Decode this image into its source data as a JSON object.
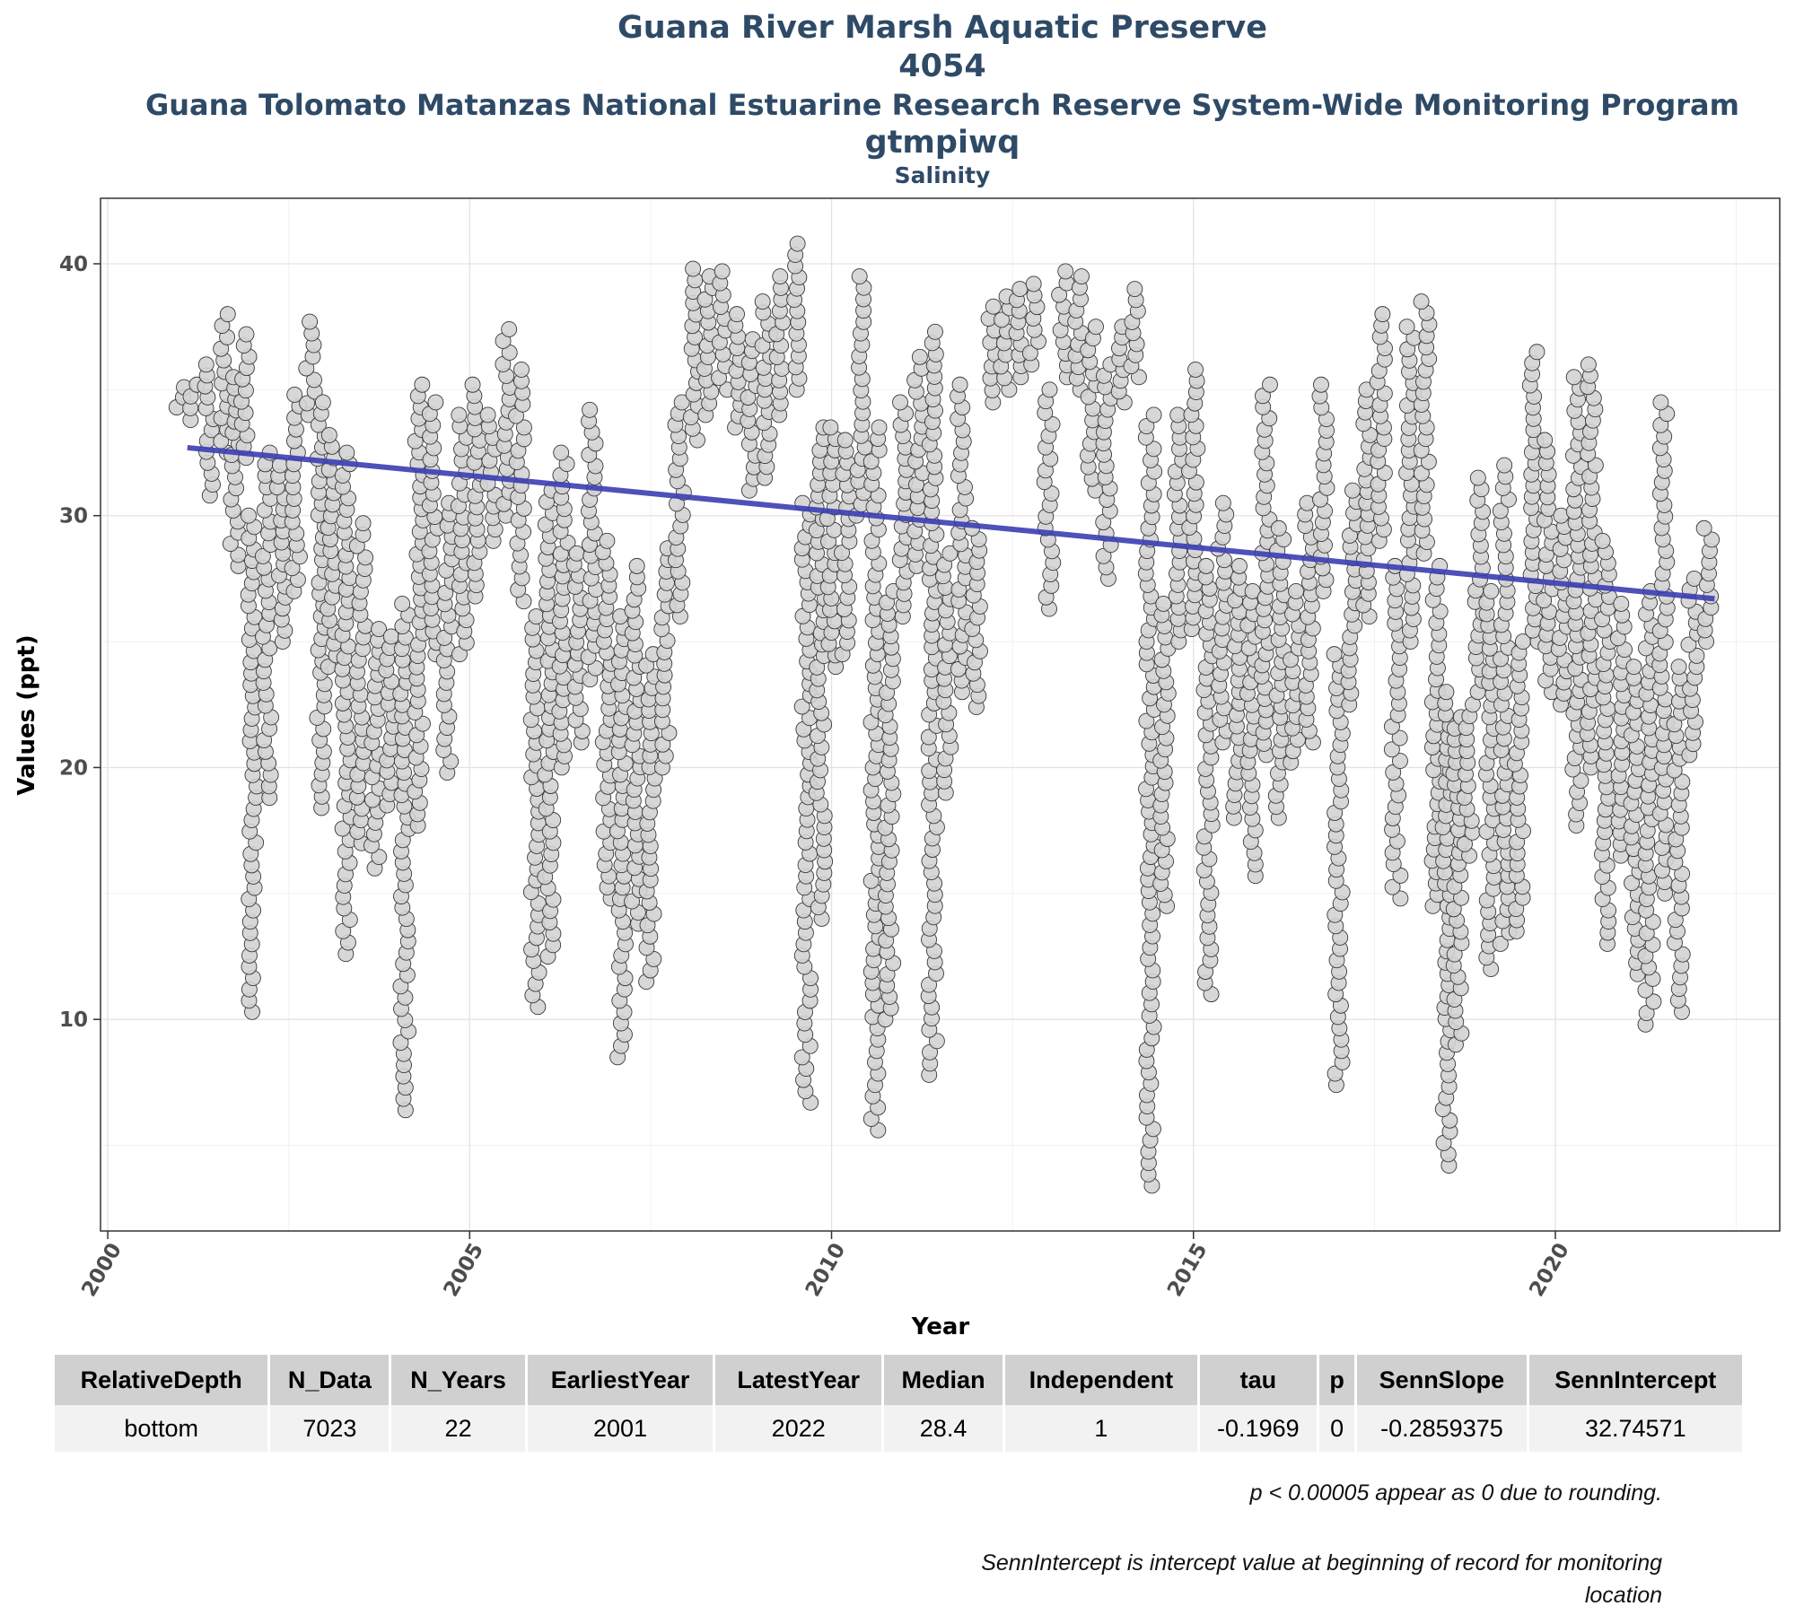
{
  "chart_data": {
    "type": "scatter",
    "title_lines": [
      "Guana River Marsh Aquatic Preserve",
      "4054",
      "Guana Tolomato Matanzas National Estuarine Research Reserve System-Wide Monitoring Program",
      "gtmpiwq"
    ],
    "subtitle": "Salinity",
    "xlabel": "Year",
    "ylabel": "Values (ppt)",
    "xlim": [
      1999.9,
      2023.1
    ],
    "ylim": [
      1.6,
      42.6
    ],
    "x_ticks": [
      2000,
      2005,
      2010,
      2015,
      2020
    ],
    "y_ticks": [
      10,
      20,
      30,
      40
    ],
    "grid": true,
    "trend_line": {
      "color": "#3a3eb0",
      "x": [
        2001.1,
        2022.2
      ],
      "y": [
        32.7,
        26.7
      ]
    },
    "point_series": [
      {
        "x": 2001.0,
        "ymin": 34.3,
        "ymax": 35.1
      },
      {
        "x": 2001.2,
        "ymin": 33.8,
        "ymax": 35.2
      },
      {
        "x": 2001.4,
        "ymin": 30.8,
        "ymax": 36.0
      },
      {
        "x": 2001.6,
        "ymin": 32.5,
        "ymax": 38.0
      },
      {
        "x": 2001.75,
        "ymin": 28.0,
        "ymax": 35.5
      },
      {
        "x": 2001.9,
        "ymin": 32.3,
        "ymax": 37.2
      },
      {
        "x": 2002.0,
        "ymin": 10.3,
        "ymax": 30.0
      },
      {
        "x": 2002.2,
        "ymin": 18.8,
        "ymax": 32.5
      },
      {
        "x": 2002.4,
        "ymin": 25.0,
        "ymax": 32.0
      },
      {
        "x": 2002.6,
        "ymin": 27.0,
        "ymax": 34.8
      },
      {
        "x": 2002.8,
        "ymin": 34.0,
        "ymax": 37.7
      },
      {
        "x": 2002.95,
        "ymin": 18.4,
        "ymax": 34.5
      },
      {
        "x": 2003.1,
        "ymin": 24.0,
        "ymax": 33.2
      },
      {
        "x": 2003.3,
        "ymin": 12.6,
        "ymax": 32.5
      },
      {
        "x": 2003.5,
        "ymin": 17.0,
        "ymax": 29.7
      },
      {
        "x": 2003.7,
        "ymin": 16.0,
        "ymax": 25.5
      },
      {
        "x": 2003.9,
        "ymin": 18.5,
        "ymax": 25.2
      },
      {
        "x": 2004.1,
        "ymin": 6.4,
        "ymax": 26.5
      },
      {
        "x": 2004.3,
        "ymin": 17.7,
        "ymax": 35.2
      },
      {
        "x": 2004.5,
        "ymin": 24.5,
        "ymax": 34.5
      },
      {
        "x": 2004.7,
        "ymin": 19.8,
        "ymax": 30.5
      },
      {
        "x": 2004.9,
        "ymin": 24.5,
        "ymax": 34.0
      },
      {
        "x": 2005.1,
        "ymin": 26.8,
        "ymax": 35.2
      },
      {
        "x": 2005.3,
        "ymin": 29.0,
        "ymax": 34.0
      },
      {
        "x": 2005.5,
        "ymin": 30.0,
        "ymax": 37.4
      },
      {
        "x": 2005.7,
        "ymin": 26.6,
        "ymax": 35.8
      },
      {
        "x": 2005.9,
        "ymin": 10.5,
        "ymax": 26.0
      },
      {
        "x": 2006.1,
        "ymin": 12.5,
        "ymax": 31.0
      },
      {
        "x": 2006.3,
        "ymin": 20.0,
        "ymax": 32.5
      },
      {
        "x": 2006.5,
        "ymin": 21.0,
        "ymax": 28.5
      },
      {
        "x": 2006.7,
        "ymin": 23.5,
        "ymax": 34.2
      },
      {
        "x": 2006.9,
        "ymin": 14.8,
        "ymax": 29.0
      },
      {
        "x": 2007.1,
        "ymin": 8.5,
        "ymax": 26.0
      },
      {
        "x": 2007.3,
        "ymin": 13.8,
        "ymax": 28.0
      },
      {
        "x": 2007.5,
        "ymin": 11.5,
        "ymax": 24.5
      },
      {
        "x": 2007.7,
        "ymin": 20.0,
        "ymax": 28.7
      },
      {
        "x": 2007.9,
        "ymin": 26.0,
        "ymax": 34.5
      },
      {
        "x": 2008.1,
        "ymin": 33.0,
        "ymax": 39.8
      },
      {
        "x": 2008.3,
        "ymin": 34.0,
        "ymax": 39.5
      },
      {
        "x": 2008.5,
        "ymin": 35.0,
        "ymax": 39.7
      },
      {
        "x": 2008.7,
        "ymin": 33.5,
        "ymax": 38.0
      },
      {
        "x": 2008.9,
        "ymin": 31.0,
        "ymax": 37.0
      },
      {
        "x": 2009.1,
        "ymin": 31.5,
        "ymax": 38.5
      },
      {
        "x": 2009.3,
        "ymin": 34.0,
        "ymax": 39.5
      },
      {
        "x": 2009.5,
        "ymin": 35.0,
        "ymax": 40.8
      },
      {
        "x": 2009.65,
        "ymin": 6.7,
        "ymax": 30.5
      },
      {
        "x": 2009.85,
        "ymin": 14.0,
        "ymax": 33.5
      },
      {
        "x": 2010.0,
        "ymin": 24.0,
        "ymax": 33.5
      },
      {
        "x": 2010.2,
        "ymin": 24.5,
        "ymax": 33.0
      },
      {
        "x": 2010.4,
        "ymin": 30.0,
        "ymax": 39.5
      },
      {
        "x": 2010.6,
        "ymin": 5.6,
        "ymax": 33.5
      },
      {
        "x": 2010.8,
        "ymin": 10.0,
        "ymax": 27.0
      },
      {
        "x": 2011.0,
        "ymin": 26.0,
        "ymax": 34.5
      },
      {
        "x": 2011.2,
        "ymin": 28.0,
        "ymax": 36.3
      },
      {
        "x": 2011.4,
        "ymin": 7.8,
        "ymax": 37.3
      },
      {
        "x": 2011.6,
        "ymin": 19.0,
        "ymax": 28.5
      },
      {
        "x": 2011.8,
        "ymin": 23.0,
        "ymax": 35.2
      },
      {
        "x": 2012.0,
        "ymin": 22.4,
        "ymax": 29.5
      },
      {
        "x": 2012.2,
        "ymin": 34.5,
        "ymax": 38.3
      },
      {
        "x": 2012.4,
        "ymin": 35.0,
        "ymax": 38.7
      },
      {
        "x": 2012.6,
        "ymin": 35.5,
        "ymax": 39.0
      },
      {
        "x": 2012.8,
        "ymin": 36.0,
        "ymax": 39.2
      },
      {
        "x": 2013.0,
        "ymin": 26.3,
        "ymax": 35.0
      },
      {
        "x": 2013.2,
        "ymin": 35.5,
        "ymax": 39.7
      },
      {
        "x": 2013.4,
        "ymin": 35.0,
        "ymax": 39.5
      },
      {
        "x": 2013.6,
        "ymin": 31.0,
        "ymax": 37.5
      },
      {
        "x": 2013.8,
        "ymin": 27.5,
        "ymax": 36.0
      },
      {
        "x": 2014.0,
        "ymin": 34.5,
        "ymax": 37.5
      },
      {
        "x": 2014.2,
        "ymin": 35.5,
        "ymax": 39.0
      },
      {
        "x": 2014.4,
        "ymin": 3.4,
        "ymax": 34.0
      },
      {
        "x": 2014.6,
        "ymin": 14.5,
        "ymax": 26.5
      },
      {
        "x": 2014.8,
        "ymin": 25.0,
        "ymax": 34.0
      },
      {
        "x": 2015.0,
        "ymin": 25.5,
        "ymax": 35.8
      },
      {
        "x": 2015.2,
        "ymin": 11.0,
        "ymax": 28.0
      },
      {
        "x": 2015.4,
        "ymin": 21.0,
        "ymax": 30.5
      },
      {
        "x": 2015.6,
        "ymin": 18.0,
        "ymax": 28.0
      },
      {
        "x": 2015.8,
        "ymin": 15.7,
        "ymax": 27.0
      },
      {
        "x": 2016.0,
        "ymin": 20.5,
        "ymax": 35.2
      },
      {
        "x": 2016.2,
        "ymin": 18.0,
        "ymax": 29.5
      },
      {
        "x": 2016.4,
        "ymin": 20.2,
        "ymax": 27.0
      },
      {
        "x": 2016.6,
        "ymin": 21.0,
        "ymax": 30.5
      },
      {
        "x": 2016.8,
        "ymin": 27.0,
        "ymax": 35.2
      },
      {
        "x": 2017.0,
        "ymin": 7.4,
        "ymax": 24.5
      },
      {
        "x": 2017.2,
        "ymin": 22.5,
        "ymax": 31.0
      },
      {
        "x": 2017.4,
        "ymin": 26.0,
        "ymax": 35.0
      },
      {
        "x": 2017.6,
        "ymin": 29.0,
        "ymax": 38.0
      },
      {
        "x": 2017.8,
        "ymin": 14.8,
        "ymax": 28.0
      },
      {
        "x": 2018.0,
        "ymin": 25.0,
        "ymax": 37.5
      },
      {
        "x": 2018.2,
        "ymin": 28.5,
        "ymax": 38.5
      },
      {
        "x": 2018.35,
        "ymin": 14.5,
        "ymax": 28.0
      },
      {
        "x": 2018.5,
        "ymin": 4.2,
        "ymax": 23.0
      },
      {
        "x": 2018.65,
        "ymin": 9.0,
        "ymax": 22.0
      },
      {
        "x": 2018.8,
        "ymin": 16.5,
        "ymax": 22.5
      },
      {
        "x": 2018.95,
        "ymin": 23.0,
        "ymax": 31.5
      },
      {
        "x": 2019.1,
        "ymin": 12.0,
        "ymax": 27.0
      },
      {
        "x": 2019.3,
        "ymin": 13.0,
        "ymax": 32.0
      },
      {
        "x": 2019.5,
        "ymin": 13.5,
        "ymax": 25.0
      },
      {
        "x": 2019.7,
        "ymin": 25.0,
        "ymax": 36.5
      },
      {
        "x": 2019.9,
        "ymin": 23.0,
        "ymax": 33.0
      },
      {
        "x": 2020.1,
        "ymin": 22.5,
        "ymax": 30.0
      },
      {
        "x": 2020.3,
        "ymin": 17.7,
        "ymax": 35.5
      },
      {
        "x": 2020.5,
        "ymin": 20.0,
        "ymax": 36.0
      },
      {
        "x": 2020.7,
        "ymin": 13.0,
        "ymax": 29.0
      },
      {
        "x": 2020.9,
        "ymin": 16.5,
        "ymax": 26.5
      },
      {
        "x": 2021.1,
        "ymin": 11.8,
        "ymax": 24.0
      },
      {
        "x": 2021.3,
        "ymin": 9.8,
        "ymax": 27.0
      },
      {
        "x": 2021.5,
        "ymin": 15.0,
        "ymax": 34.5
      },
      {
        "x": 2021.7,
        "ymin": 10.3,
        "ymax": 24.0
      },
      {
        "x": 2021.9,
        "ymin": 20.5,
        "ymax": 27.5
      },
      {
        "x": 2022.1,
        "ymin": 25.0,
        "ymax": 29.5
      }
    ],
    "stats_table": {
      "headers": [
        "RelativeDepth",
        "N_Data",
        "N_Years",
        "EarliestYear",
        "LatestYear",
        "Median",
        "Independent",
        "tau",
        "p",
        "SennSlope",
        "SennIntercept"
      ],
      "rows": [
        [
          "bottom",
          "7023",
          "22",
          "2001",
          "2022",
          "28.4",
          "1",
          "-0.1969",
          "0",
          "-0.2859375",
          "32.74571"
        ]
      ]
    },
    "notes": [
      "p < 0.00005 appear as 0 due to rounding.",
      "SennIntercept is intercept value at beginning of record for monitoring location"
    ]
  }
}
